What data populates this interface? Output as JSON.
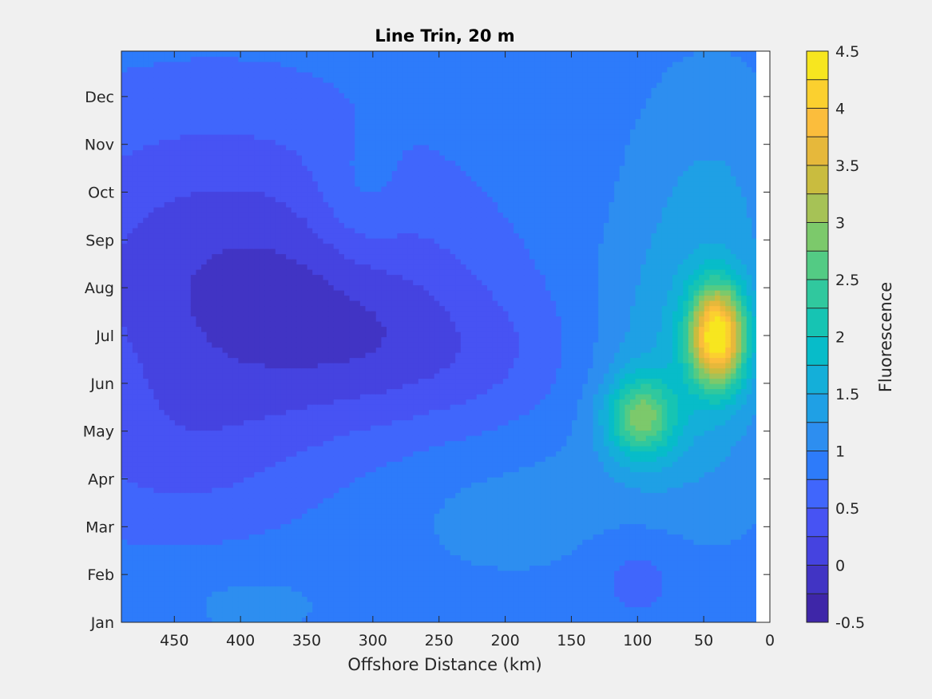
{
  "chart_data": {
    "type": "heatmap",
    "subtype": "filled-contour",
    "title": "Line Trin, 20 m",
    "xlabel": "Offshore Distance (km)",
    "ylabel": "",
    "x_reversed": true,
    "xlim": [
      0,
      490
    ],
    "x_data_extent": [
      10,
      490
    ],
    "x_ticks": [
      450,
      400,
      350,
      300,
      250,
      200,
      150,
      100,
      50,
      0
    ],
    "x_tick_labels": [
      "450",
      "400",
      "350",
      "300",
      "250",
      "200",
      "150",
      "100",
      "50",
      "0"
    ],
    "y_ticks": [
      1,
      2,
      3,
      4,
      5,
      6,
      7,
      8,
      9,
      10,
      11,
      12
    ],
    "y_tick_labels": [
      "Jan",
      "Feb",
      "Mar",
      "Apr",
      "May",
      "Jun",
      "Jul",
      "Aug",
      "Sep",
      "Oct",
      "Nov",
      "Dec"
    ],
    "ylim": [
      1,
      12.95
    ],
    "colorbar": {
      "label": "Fluorescence",
      "range": [
        -0.5,
        4.5
      ],
      "level_step": 0.25,
      "ticks": [
        -0.5,
        0,
        0.5,
        1,
        1.5,
        2,
        2.5,
        3,
        3.5,
        4,
        4.5
      ],
      "tick_labels": [
        "-0.5",
        "0",
        "0.5",
        "1",
        "1.5",
        "2",
        "2.5",
        "3",
        "3.5",
        "4",
        "4.5"
      ]
    },
    "grid": false,
    "background_field_value": 0.9,
    "features": [
      {
        "x": 40,
        "y": 7.0,
        "amplitude": 3.2,
        "sx": 15,
        "sy": 0.75,
        "kind": "chlorophyll maximum"
      },
      {
        "x": 98,
        "y": 5.3,
        "amplitude": 1.6,
        "sx": 18,
        "sy": 0.6,
        "kind": "secondary maximum"
      },
      {
        "x": 70,
        "y": 6.1,
        "amplitude": 0.6,
        "sx": 50,
        "sy": 2.0
      },
      {
        "x": 45,
        "y": 9.8,
        "amplitude": 0.35,
        "sx": 40,
        "sy": 2.0
      },
      {
        "x": 420,
        "y": 8.5,
        "amplitude": -0.75,
        "sx": 110,
        "sy": 2.4
      },
      {
        "x": 320,
        "y": 7.2,
        "amplitude": -0.45,
        "sx": 90,
        "sy": 1.5
      },
      {
        "x": 230,
        "y": 6.5,
        "amplitude": -0.25,
        "sx": 80,
        "sy": 1.0
      },
      {
        "x": 450,
        "y": 4.5,
        "amplitude": -0.35,
        "sx": 70,
        "sy": 1.3
      },
      {
        "x": 100,
        "y": 2.0,
        "amplitude": -0.3,
        "sx": 25,
        "sy": 0.7
      },
      {
        "x": 200,
        "y": 3.3,
        "amplitude": 0.2,
        "sx": 60,
        "sy": 1.0
      },
      {
        "x": 310,
        "y": 9.8,
        "amplitude": 0.3,
        "sx": 25,
        "sy": 1.0
      },
      {
        "x": 390,
        "y": 1.4,
        "amplitude": 0.2,
        "sx": 40,
        "sy": 0.5
      }
    ]
  }
}
